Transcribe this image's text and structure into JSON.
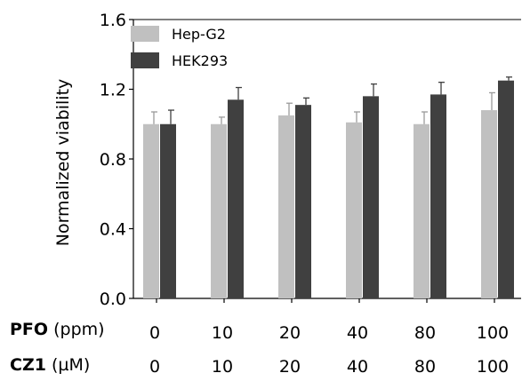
{
  "chart_data": {
    "type": "bar",
    "ylabel": "Normalized viability",
    "ylim": [
      0.0,
      1.6
    ],
    "yticks": [
      0.0,
      0.4,
      0.8,
      1.2,
      1.6
    ],
    "ytick_labels": [
      "0.0",
      "0.4",
      "0.8",
      "1.2",
      "1.6"
    ],
    "legend_position": "top-left",
    "categories": [
      "0",
      "10",
      "20",
      "40",
      "80",
      "100"
    ],
    "x_rows": [
      {
        "name": "PFO",
        "unit": "(ppm)",
        "labels": [
          "0",
          "10",
          "20",
          "40",
          "80",
          "100"
        ]
      },
      {
        "name": "CZ1",
        "unit": "(µM)",
        "labels": [
          "0",
          "10",
          "20",
          "40",
          "80",
          "100"
        ]
      }
    ],
    "series": [
      {
        "name": "Hep-G2",
        "color": "#c0c0c0",
        "values": [
          1.0,
          1.0,
          1.05,
          1.01,
          1.0,
          1.08
        ],
        "errors": [
          0.07,
          0.04,
          0.07,
          0.06,
          0.07,
          0.1
        ]
      },
      {
        "name": "HEK293",
        "color": "#404040",
        "values": [
          1.0,
          1.14,
          1.11,
          1.16,
          1.17,
          1.25
        ],
        "errors": [
          0.08,
          0.07,
          0.04,
          0.07,
          0.07,
          0.02
        ]
      }
    ]
  }
}
